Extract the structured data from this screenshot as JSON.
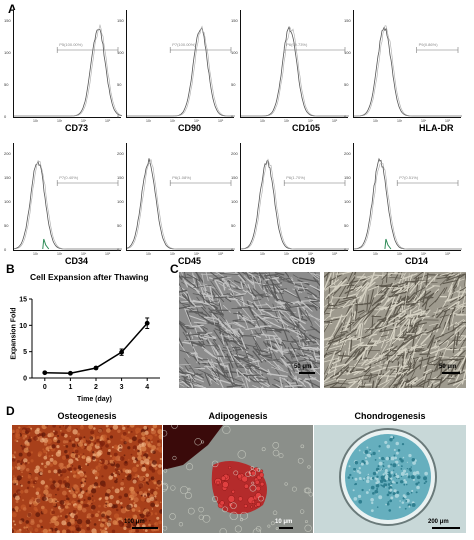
{
  "panel_a": {
    "letter": "A",
    "markers": [
      "CD73",
      "CD90",
      "CD105",
      "HLA-DR",
      "CD34",
      "CD45",
      "CD19",
      "CD14"
    ],
    "gates": [
      "P5(100.00%)",
      "P7(100.00%)",
      "P6(99.73%)",
      "P9(0.86%)",
      "P7(0.40%)",
      "P6(1.08%)",
      "P6(1.70%)",
      "P7(0.51%)"
    ],
    "yticks_top": [
      "150",
      "100",
      "50",
      "0"
    ],
    "yticks_bottom": [
      "200",
      "150",
      "100",
      "50",
      "0"
    ],
    "xticks": [
      "10²",
      "10³",
      "10⁴",
      "10⁵"
    ]
  },
  "panel_b": {
    "letter": "B",
    "chart_data": {
      "type": "line",
      "title": "Cell Expansion after Thawing",
      "xlabel": "Time (day)",
      "ylabel": "Expansion Fold",
      "x": [
        0,
        1,
        2,
        3,
        4
      ],
      "values": [
        1.0,
        0.9,
        1.9,
        4.9,
        10.4
      ],
      "errors": [
        0.1,
        0.1,
        0.2,
        0.6,
        1.0
      ],
      "yticks": [
        0,
        5,
        10,
        15
      ],
      "xticks": [
        0,
        1,
        2,
        3,
        4
      ],
      "ylim": [
        0,
        15
      ],
      "xlim": [
        -0.5,
        4.5
      ]
    }
  },
  "panel_c": {
    "letter": "C",
    "scale_left": "50 μm",
    "scale_right": "50 μm"
  },
  "panel_d": {
    "letter": "D",
    "titles": [
      "Osteogenesis",
      "Adipogenesis",
      "Chondrogenesis"
    ],
    "scales": [
      "100 μm",
      "10 μm",
      "200 μm"
    ]
  },
  "colors": {
    "histogram": "#555555",
    "isotype": "#aaaaaa",
    "positive_green": "#2e8b57",
    "osteo": "#b5451b",
    "alcian": "#4fa3b5"
  }
}
